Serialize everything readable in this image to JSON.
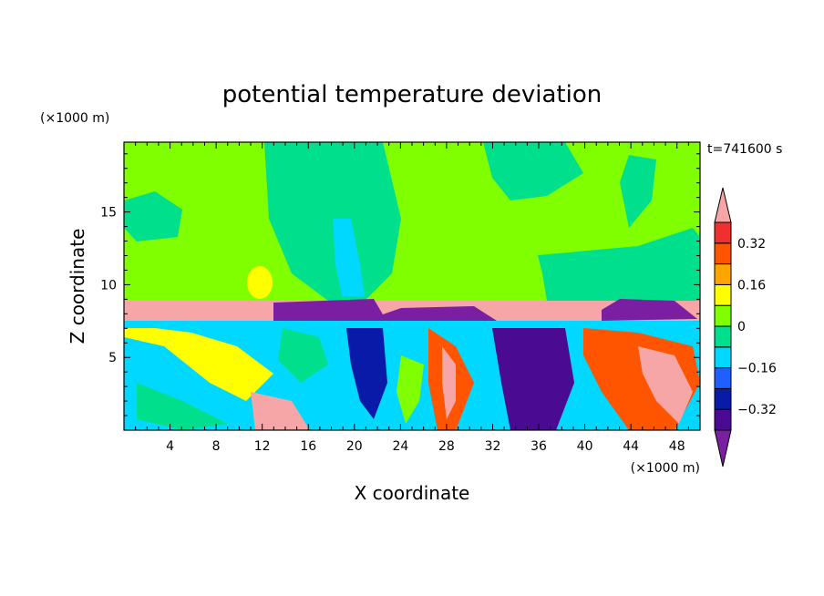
{
  "chart_data": {
    "type": "heatmap",
    "title": "potential temperature deviation",
    "xlabel": "X coordinate",
    "ylabel": "Z coordinate",
    "x_unit": "(×1000 m)",
    "y_unit": "(×1000 m)",
    "time_label": "t=741600 s",
    "xlim": [
      0,
      50
    ],
    "ylim": [
      0,
      19.8
    ],
    "x_ticks": [
      4,
      8,
      12,
      16,
      20,
      24,
      28,
      32,
      36,
      40,
      44,
      48
    ],
    "y_ticks": [
      5,
      10,
      15
    ],
    "colorbar": {
      "levels": [
        -0.4,
        -0.32,
        -0.24,
        -0.16,
        -0.08,
        0,
        0.08,
        0.16,
        0.24,
        0.32,
        0.4
      ],
      "tick_labels": [
        "0.32",
        "0.16",
        "0",
        "−0.16",
        "−0.32"
      ],
      "tick_values": [
        0.32,
        0.16,
        0,
        -0.16,
        -0.32
      ],
      "colors": [
        "#7a1fa2",
        "#4a0a91",
        "#0a1aa8",
        "#1f5fff",
        "#00d8ff",
        "#00e08c",
        "#80ff00",
        "#ffff00",
        "#ffa500",
        "#ff5500",
        "#f03030",
        "#f6a6a6"
      ]
    },
    "grid": false,
    "legend": "right colorbar"
  }
}
